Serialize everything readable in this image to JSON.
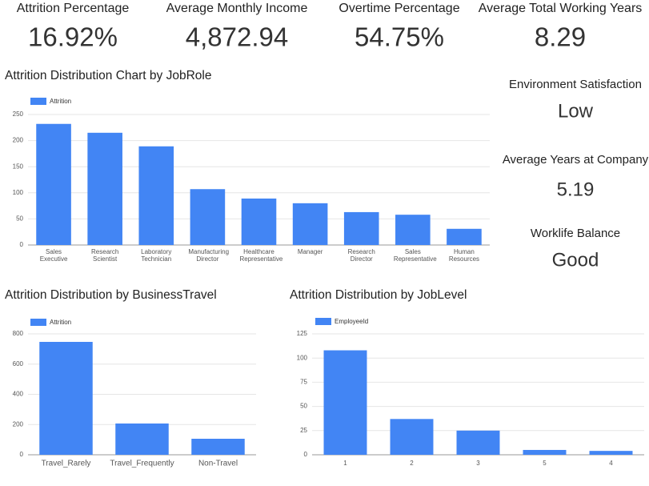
{
  "kpis": [
    {
      "label": "Attrition Percentage",
      "value": "16.92%"
    },
    {
      "label": "Average Monthly Income",
      "value": "4,872.94"
    },
    {
      "label": "Overtime Percentage",
      "value": "54.75%"
    },
    {
      "label": "Average Total Working Years",
      "value": "8.29"
    }
  ],
  "side_kpis": [
    {
      "label": "Environment Satisfaction",
      "value": "Low"
    },
    {
      "label": "Average Years at Company",
      "value": "5.19"
    },
    {
      "label": "Worklife Balance",
      "value": "Good"
    }
  ],
  "chart_data": [
    {
      "type": "bar",
      "title": "Attrition Distribution Chart by JobRole",
      "categories": [
        "Sales Executive",
        "Research Scientist",
        "Laboratory Technician",
        "Manufacturing Director",
        "Healthcare Representative",
        "Manager",
        "Research Director",
        "Sales Representative",
        "Human Resources"
      ],
      "series": [
        {
          "name": "Attrition",
          "color": "#4285f4",
          "values": [
            232,
            215,
            189,
            107,
            89,
            80,
            63,
            58,
            31
          ]
        }
      ],
      "ylim": [
        0,
        250
      ],
      "yticks": [
        0,
        50,
        100,
        150,
        200,
        250
      ],
      "grid": true,
      "legend": "top-left"
    },
    {
      "type": "bar",
      "title": "Attrition Distribution by BusinessTravel",
      "categories": [
        "Travel_Rarely",
        "Travel_Frequently",
        "Non-Travel"
      ],
      "series": [
        {
          "name": "Attrition",
          "color": "#4285f4",
          "values": [
            747,
            207,
            106
          ]
        }
      ],
      "ylim": [
        0,
        800
      ],
      "yticks": [
        0,
        200,
        400,
        600,
        800
      ],
      "grid": true,
      "legend": "top-left"
    },
    {
      "type": "bar",
      "title": "Attrition Distribution by JobLevel",
      "categories": [
        "1",
        "2",
        "3",
        "5",
        "4"
      ],
      "series": [
        {
          "name": "EmployeeId",
          "color": "#4285f4",
          "values": [
            108,
            37,
            25,
            5,
            4
          ]
        }
      ],
      "ylim": [
        0,
        125
      ],
      "yticks": [
        0,
        25,
        50,
        75,
        100,
        125
      ],
      "grid": true,
      "legend": "top-left"
    }
  ]
}
